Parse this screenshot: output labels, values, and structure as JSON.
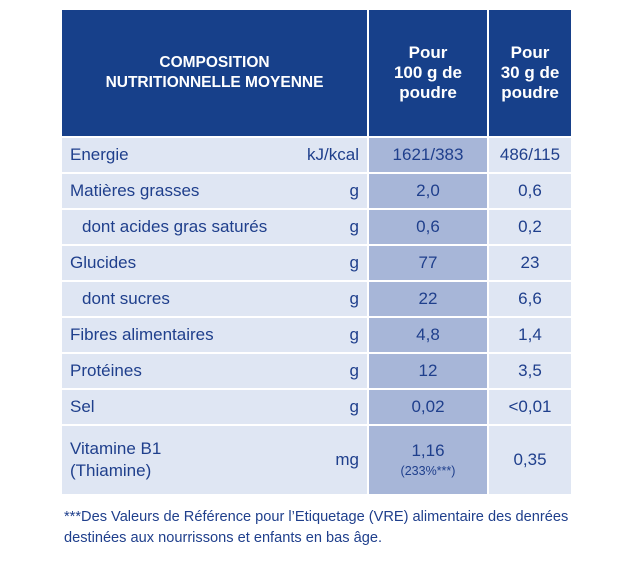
{
  "header": {
    "composition_line1": "COMPOSITION",
    "composition_line2": "NUTRITIONNELLE MOYENNE",
    "col100_line1": "Pour",
    "col100_line2": "100 g de",
    "col100_line3": "poudre",
    "col30_line1": "Pour",
    "col30_line2": "30 g de",
    "col30_line3": "poudre"
  },
  "rows": [
    {
      "name": "Energie",
      "unit": "kJ/kcal",
      "per100": "1621/383",
      "per30": "486/115"
    },
    {
      "name": "Matières grasses",
      "unit": "g",
      "per100": "2,0",
      "per30": "0,6"
    },
    {
      "name": "dont acides gras saturés",
      "unit": "g",
      "per100": "0,6",
      "per30": "0,2"
    },
    {
      "name": "Glucides",
      "unit": "g",
      "per100": "77",
      "per30": "23"
    },
    {
      "name": "dont sucres",
      "unit": "g",
      "per100": "22",
      "per30": "6,6"
    },
    {
      "name": "Fibres alimentaires",
      "unit": "g",
      "per100": "4,8",
      "per30": "1,4"
    },
    {
      "name": "Protéines",
      "unit": "g",
      "per100": "12",
      "per30": "3,5"
    },
    {
      "name": "Sel",
      "unit": "g",
      "per100": "0,02",
      "per30": "<0,01"
    },
    {
      "name_line1": "Vitamine B1",
      "name_line2": "(Thiamine)",
      "unit": "mg",
      "per100": "1,16",
      "per100_note": "(233%***)",
      "per30": "0,35"
    }
  ],
  "footnote": "***Des Valeurs de Référence pour l’Etiquetage (VRE) alimentaire des denrées destinées aux nourrissons et enfants en bas âge."
}
